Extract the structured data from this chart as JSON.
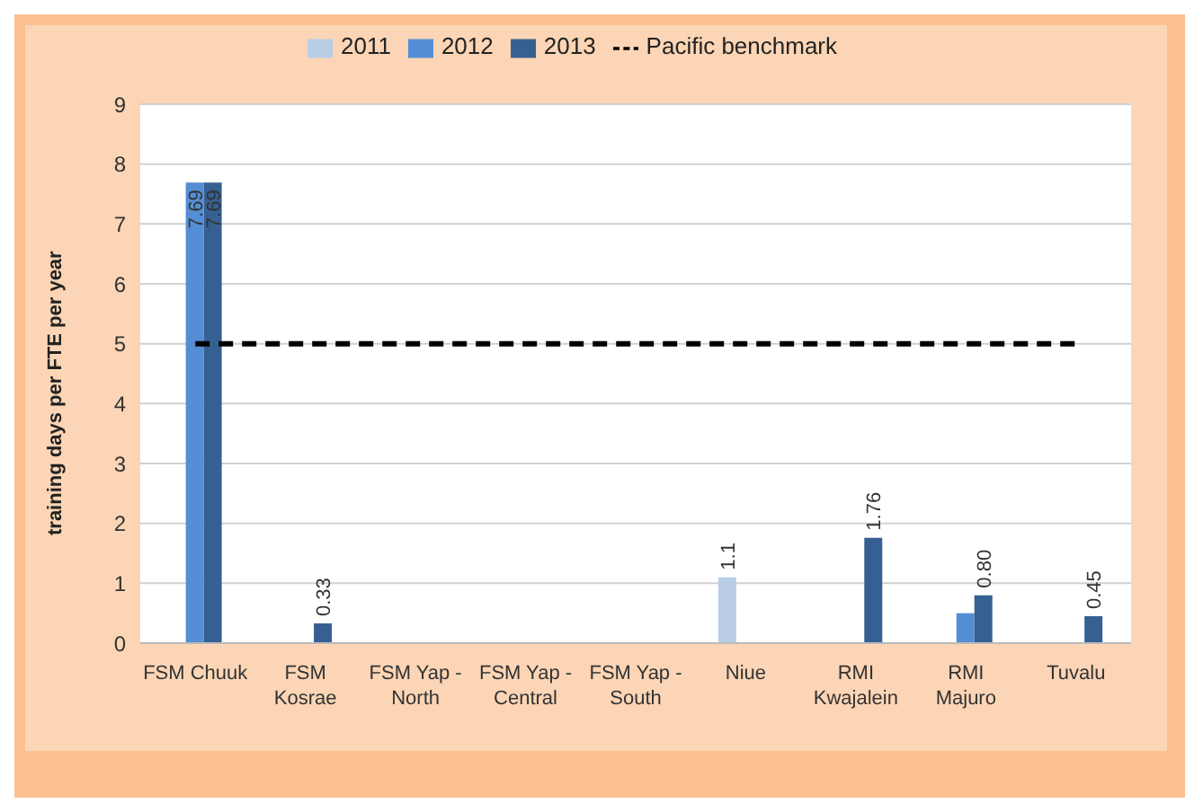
{
  "chart_data": {
    "type": "bar",
    "ylabel": "training days per FTE per year",
    "categories": [
      "FSM Chuuk",
      "FSM Kosrae",
      "FSM Yap - North",
      "FSM Yap - Central",
      "FSM Yap - South",
      "Niue",
      "RMI Kwajalein",
      "RMI Majuro",
      "Tuvalu"
    ],
    "series": [
      {
        "name": "2011",
        "color": "#b9cde5",
        "values": [
          null,
          null,
          null,
          null,
          null,
          1.1,
          null,
          null,
          null
        ],
        "value_labels": [
          null,
          null,
          null,
          null,
          null,
          "1.1",
          null,
          null,
          null
        ]
      },
      {
        "name": "2012",
        "color": "#558ed5",
        "values": [
          7.69,
          null,
          null,
          null,
          null,
          null,
          null,
          0.5,
          null
        ],
        "value_labels": [
          "7.69",
          null,
          null,
          null,
          null,
          null,
          null,
          null,
          null
        ]
      },
      {
        "name": "2013",
        "color": "#376092",
        "values": [
          7.69,
          0.33,
          null,
          null,
          null,
          null,
          1.76,
          0.8,
          0.45
        ],
        "value_labels": [
          "7.69",
          "0.33",
          null,
          null,
          null,
          null,
          "1.76",
          "0.80",
          "0.45"
        ]
      },
      {
        "name": "Pacific benchmark",
        "type": "line",
        "color": "#000000",
        "line_style": "dashed",
        "marker": "none",
        "values": [
          5,
          5,
          5,
          5,
          5,
          5,
          5,
          5,
          5
        ]
      }
    ],
    "ylim": [
      0,
      9
    ],
    "yticks": [
      0,
      1,
      2,
      3,
      4,
      5,
      6,
      7,
      8,
      9
    ],
    "grid": "y",
    "legend": "top"
  }
}
